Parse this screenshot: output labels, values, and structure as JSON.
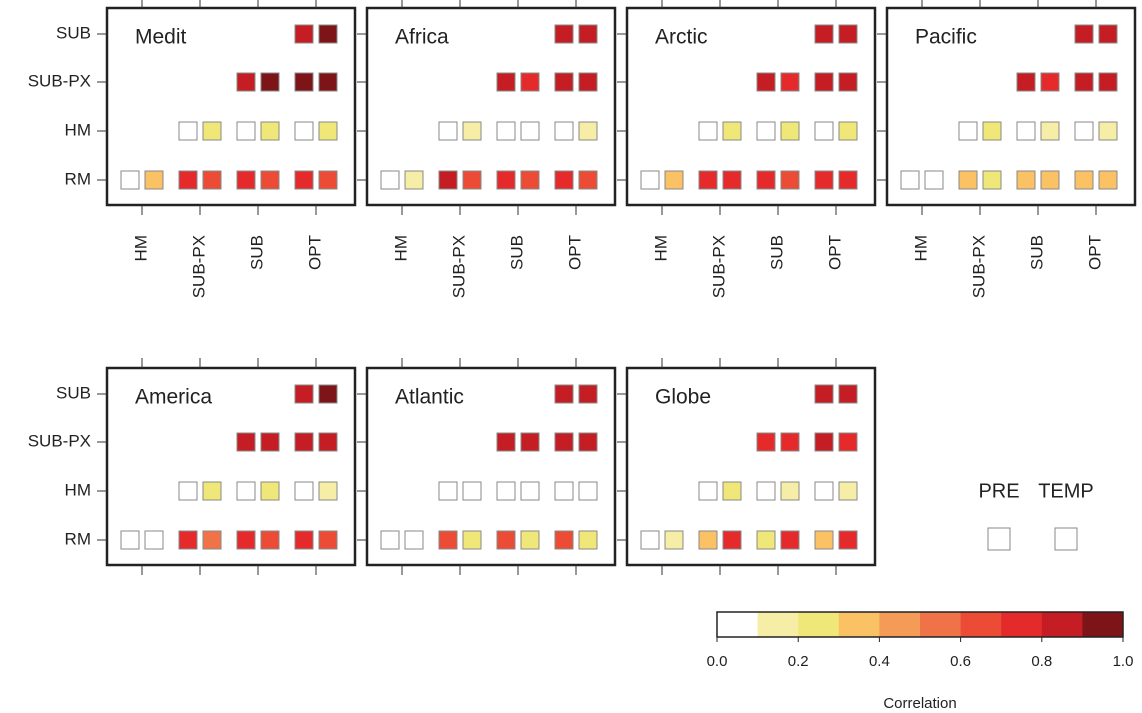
{
  "chart_data": {
    "type": "heatmap",
    "rows": [
      "SUB",
      "SUB-PX",
      "HM",
      "RM"
    ],
    "columns": [
      "HM",
      "SUB-PX",
      "SUB",
      "OPT"
    ],
    "series": [
      "PRE",
      "TEMP"
    ],
    "panels": [
      {
        "title": "Medit",
        "values": [
          [
            [
              null,
              null,
              null,
              0.85
            ],
            [
              null,
              null,
              0.85,
              0.97
            ],
            [
              null,
              0.05,
              0.05,
              0.05
            ],
            [
              0.05,
              0.75,
              0.75,
              0.75
            ]
          ],
          [
            [
              null,
              null,
              null,
              0.97
            ],
            [
              null,
              null,
              0.97,
              0.97
            ],
            [
              null,
              0.25,
              0.25,
              0.25
            ],
            [
              0.35,
              0.65,
              0.65,
              0.65
            ]
          ]
        ]
      },
      {
        "title": "Africa",
        "values": [
          [
            [
              null,
              null,
              null,
              0.85
            ],
            [
              null,
              null,
              0.85,
              0.85
            ],
            [
              null,
              0.05,
              0.05,
              0.05
            ],
            [
              0.05,
              0.85,
              0.75,
              0.75
            ]
          ],
          [
            [
              null,
              null,
              null,
              0.85
            ],
            [
              null,
              null,
              0.75,
              0.85
            ],
            [
              null,
              0.15,
              0.05,
              0.15
            ],
            [
              0.15,
              0.65,
              0.65,
              0.65
            ]
          ]
        ]
      },
      {
        "title": "Arctic",
        "values": [
          [
            [
              null,
              null,
              null,
              0.85
            ],
            [
              null,
              null,
              0.85,
              0.85
            ],
            [
              null,
              0.05,
              0.05,
              0.05
            ],
            [
              0.05,
              0.75,
              0.75,
              0.75
            ]
          ],
          [
            [
              null,
              null,
              null,
              0.85
            ],
            [
              null,
              null,
              0.75,
              0.85
            ],
            [
              null,
              0.25,
              0.25,
              0.25
            ],
            [
              0.35,
              0.75,
              0.65,
              0.75
            ]
          ]
        ]
      },
      {
        "title": "Pacific",
        "values": [
          [
            [
              null,
              null,
              null,
              0.85
            ],
            [
              null,
              null,
              0.85,
              0.85
            ],
            [
              null,
              0.05,
              0.05,
              0.05
            ],
            [
              0.05,
              0.35,
              0.35,
              0.35
            ]
          ],
          [
            [
              null,
              null,
              null,
              0.85
            ],
            [
              null,
              null,
              0.75,
              0.85
            ],
            [
              null,
              0.25,
              0.15,
              0.15
            ],
            [
              0.05,
              0.25,
              0.35,
              0.35
            ]
          ]
        ]
      },
      {
        "title": "America",
        "values": [
          [
            [
              null,
              null,
              null,
              0.85
            ],
            [
              null,
              null,
              0.85,
              0.85
            ],
            [
              null,
              0.05,
              0.05,
              0.05
            ],
            [
              0.05,
              0.75,
              0.75,
              0.75
            ]
          ],
          [
            [
              null,
              null,
              null,
              0.97
            ],
            [
              null,
              null,
              0.85,
              0.85
            ],
            [
              null,
              0.25,
              0.25,
              0.15
            ],
            [
              0.05,
              0.55,
              0.65,
              0.65
            ]
          ]
        ]
      },
      {
        "title": "Atlantic",
        "values": [
          [
            [
              null,
              null,
              null,
              0.85
            ],
            [
              null,
              null,
              0.85,
              0.85
            ],
            [
              null,
              0.05,
              0.05,
              0.05
            ],
            [
              0.05,
              0.65,
              0.65,
              0.65
            ]
          ],
          [
            [
              null,
              null,
              null,
              0.85
            ],
            [
              null,
              null,
              0.85,
              0.85
            ],
            [
              null,
              0.05,
              0.05,
              0.05
            ],
            [
              0.05,
              0.25,
              0.25,
              0.25
            ]
          ]
        ]
      },
      {
        "title": "Globe",
        "values": [
          [
            [
              null,
              null,
              null,
              0.85
            ],
            [
              null,
              null,
              0.75,
              0.85
            ],
            [
              null,
              0.05,
              0.05,
              0.05
            ],
            [
              0.05,
              0.35,
              0.25,
              0.35
            ]
          ],
          [
            [
              null,
              null,
              null,
              0.85
            ],
            [
              null,
              null,
              0.75,
              0.75
            ],
            [
              null,
              0.25,
              0.15,
              0.15
            ],
            [
              0.15,
              0.75,
              0.75,
              0.75
            ]
          ]
        ]
      }
    ],
    "colors": [
      "#ffffff",
      "#f6eea6",
      "#efe777",
      "#fbc165",
      "#f59b58",
      "#ef7347",
      "#ec4c36",
      "#e52a2b",
      "#c41e24",
      "#7d1418"
    ],
    "clim": [
      0,
      1
    ],
    "cticks": [
      {
        "value": 0,
        "label": "0.0"
      },
      0.2,
      0.4,
      0.6,
      0.8,
      {
        "value": 1,
        "label": "1.0"
      }
    ],
    "clabel": "Correlation"
  }
}
